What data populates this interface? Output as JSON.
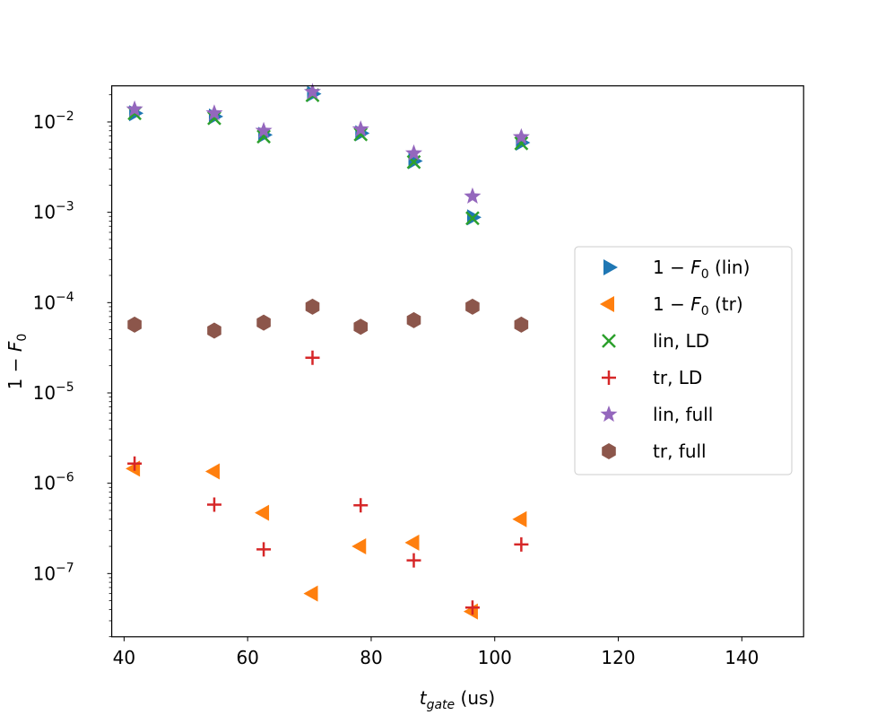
{
  "chart_data": {
    "type": "scatter",
    "title": "",
    "xlabel": {
      "var": "t",
      "sub": "gate",
      "unit": " (us)"
    },
    "ylabel": {
      "text": "1 − ",
      "var": "F",
      "sub": "0"
    },
    "xlim": [
      38,
      150
    ],
    "ylog_range": [
      -7.7,
      -1.6
    ],
    "xticks": [
      40,
      60,
      80,
      100,
      120,
      140
    ],
    "xtick_labels": [
      "40",
      "60",
      "80",
      "100",
      "120",
      "140"
    ],
    "yticks": [
      -7,
      -6,
      -5,
      -4,
      -3,
      -2
    ],
    "ytick_labels": [
      {
        "base": "10",
        "exp": "−7"
      },
      {
        "base": "10",
        "exp": "−6"
      },
      {
        "base": "10",
        "exp": "−5"
      },
      {
        "base": "10",
        "exp": "−4"
      },
      {
        "base": "10",
        "exp": "−3"
      },
      {
        "base": "10",
        "exp": "−2"
      }
    ],
    "legend_position": "center-right",
    "series": [
      {
        "key": "lin",
        "marker": "triangle-right",
        "color": "#1f77b4",
        "legend": {
          "text": "1 − ",
          "var": "F",
          "sub": "0",
          "rest": " (lin)"
        },
        "x": [
          41.7,
          54.6,
          62.6,
          70.5,
          78.3,
          86.9,
          96.4,
          104.3
        ],
        "y": [
          0.0125,
          0.0115,
          0.0072,
          0.0205,
          0.0075,
          0.0037,
          0.00088,
          0.0059
        ]
      },
      {
        "key": "tr",
        "marker": "triangle-left",
        "color": "#ff7f0e",
        "legend": {
          "text": "1 − ",
          "var": "F",
          "sub": "0",
          "rest": " (tr)"
        },
        "x": [
          41.7,
          54.6,
          62.6,
          70.5,
          78.3,
          86.9,
          96.4,
          104.3
        ],
        "y": [
          1.45e-06,
          1.35e-06,
          4.7e-07,
          6e-08,
          2e-07,
          2.2e-07,
          3.8e-08,
          4e-07
        ]
      },
      {
        "key": "linld",
        "marker": "x",
        "color": "#2ca02c",
        "legend": {
          "text": "lin, LD"
        },
        "x": [
          41.7,
          54.6,
          62.6,
          70.5,
          78.3,
          86.9,
          96.4,
          104.3
        ],
        "y": [
          0.0125,
          0.011,
          0.0069,
          0.0198,
          0.0073,
          0.0036,
          0.00086,
          0.0058
        ]
      },
      {
        "key": "trld",
        "marker": "plus",
        "color": "#d62728",
        "legend": {
          "text": "tr, LD"
        },
        "x": [
          41.7,
          54.6,
          62.6,
          70.5,
          78.3,
          86.9,
          96.4,
          104.3
        ],
        "y": [
          1.65e-06,
          5.8e-07,
          1.85e-07,
          2.45e-05,
          5.7e-07,
          1.4e-07,
          4.2e-08,
          2.1e-07
        ]
      },
      {
        "key": "linfull",
        "marker": "star",
        "color": "#9467bd",
        "legend": {
          "text": "lin, full"
        },
        "x": [
          41.7,
          54.6,
          62.6,
          70.5,
          78.3,
          86.9,
          96.4,
          104.3
        ],
        "y": [
          0.0138,
          0.0125,
          0.008,
          0.0215,
          0.0083,
          0.0045,
          0.0015,
          0.0068
        ]
      },
      {
        "key": "trfull",
        "marker": "hexagon",
        "color": "#8c564b",
        "legend": {
          "text": "tr, full"
        },
        "x": [
          41.7,
          54.6,
          62.6,
          70.5,
          78.3,
          86.9,
          96.4,
          104.3
        ],
        "y": [
          5.7e-05,
          4.9e-05,
          6e-05,
          9e-05,
          5.4e-05,
          6.4e-05,
          9e-05,
          5.7e-05
        ]
      }
    ]
  }
}
